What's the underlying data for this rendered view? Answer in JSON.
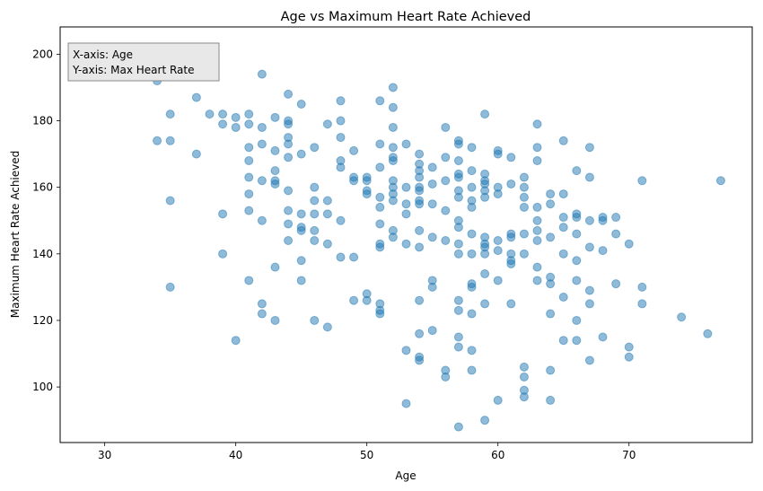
{
  "chart_data": {
    "type": "scatter",
    "title": "Age vs Maximum Heart Rate Achieved",
    "xlabel": "Age",
    "ylabel": "Maximum Heart Rate Achieved",
    "xlim": [
      26.6,
      79.4
    ],
    "ylim": [
      83.3,
      208.2
    ],
    "xticks": [
      30,
      40,
      50,
      60,
      70
    ],
    "yticks": [
      100,
      120,
      140,
      160,
      180,
      200
    ],
    "grid": false,
    "marker_color": "#1f77b4",
    "marker_alpha": 0.5,
    "annotation": {
      "lines": [
        "X-axis: Age",
        "Y-axis: Max Heart Rate"
      ],
      "position": "top-left",
      "facecolor": "#e8e8e8",
      "edgecolor": "#888888"
    },
    "points": [
      [
        29,
        202
      ],
      [
        34,
        192
      ],
      [
        34,
        174
      ],
      [
        35,
        174
      ],
      [
        35,
        182
      ],
      [
        35,
        156
      ],
      [
        35,
        130
      ],
      [
        37,
        187
      ],
      [
        37,
        170
      ],
      [
        38,
        182
      ],
      [
        39,
        182
      ],
      [
        39,
        179
      ],
      [
        39,
        152
      ],
      [
        39,
        140
      ],
      [
        40,
        181
      ],
      [
        40,
        178
      ],
      [
        40,
        114
      ],
      [
        41,
        182
      ],
      [
        41,
        179
      ],
      [
        41,
        172
      ],
      [
        41,
        168
      ],
      [
        41,
        163
      ],
      [
        41,
        158
      ],
      [
        41,
        153
      ],
      [
        41,
        132
      ],
      [
        42,
        194
      ],
      [
        42,
        178
      ],
      [
        42,
        173
      ],
      [
        42,
        162
      ],
      [
        42,
        150
      ],
      [
        42,
        125
      ],
      [
        42,
        122
      ],
      [
        43,
        181
      ],
      [
        43,
        171
      ],
      [
        43,
        165
      ],
      [
        43,
        162
      ],
      [
        43,
        161
      ],
      [
        43,
        136
      ],
      [
        43,
        120
      ],
      [
        44,
        188
      ],
      [
        44,
        180
      ],
      [
        44,
        179
      ],
      [
        44,
        175
      ],
      [
        44,
        173
      ],
      [
        44,
        169
      ],
      [
        44,
        159
      ],
      [
        44,
        153
      ],
      [
        44,
        149
      ],
      [
        44,
        144
      ],
      [
        45,
        185
      ],
      [
        45,
        170
      ],
      [
        45,
        152
      ],
      [
        45,
        148
      ],
      [
        45,
        147
      ],
      [
        45,
        138
      ],
      [
        45,
        132
      ],
      [
        46,
        172
      ],
      [
        46,
        160
      ],
      [
        46,
        156
      ],
      [
        46,
        152
      ],
      [
        46,
        147
      ],
      [
        46,
        144
      ],
      [
        46,
        120
      ],
      [
        47,
        179
      ],
      [
        47,
        156
      ],
      [
        47,
        152
      ],
      [
        47,
        143
      ],
      [
        47,
        118
      ],
      [
        48,
        186
      ],
      [
        48,
        180
      ],
      [
        48,
        175
      ],
      [
        48,
        168
      ],
      [
        48,
        166
      ],
      [
        48,
        150
      ],
      [
        48,
        139
      ],
      [
        49,
        171
      ],
      [
        49,
        163
      ],
      [
        49,
        162
      ],
      [
        49,
        139
      ],
      [
        49,
        126
      ],
      [
        50,
        163
      ],
      [
        50,
        162
      ],
      [
        50,
        159
      ],
      [
        50,
        158
      ],
      [
        50,
        128
      ],
      [
        50,
        126
      ],
      [
        51,
        186
      ],
      [
        51,
        173
      ],
      [
        51,
        166
      ],
      [
        51,
        157
      ],
      [
        51,
        154
      ],
      [
        51,
        149
      ],
      [
        51,
        143
      ],
      [
        51,
        142
      ],
      [
        51,
        125
      ],
      [
        51,
        123
      ],
      [
        51,
        122
      ],
      [
        52,
        190
      ],
      [
        52,
        184
      ],
      [
        52,
        178
      ],
      [
        52,
        172
      ],
      [
        52,
        169
      ],
      [
        52,
        168
      ],
      [
        52,
        162
      ],
      [
        52,
        160
      ],
      [
        52,
        158
      ],
      [
        52,
        156
      ],
      [
        52,
        147
      ],
      [
        52,
        145
      ],
      [
        53,
        173
      ],
      [
        53,
        160
      ],
      [
        53,
        155
      ],
      [
        53,
        152
      ],
      [
        53,
        143
      ],
      [
        53,
        111
      ],
      [
        53,
        95
      ],
      [
        54,
        170
      ],
      [
        54,
        167
      ],
      [
        54,
        165
      ],
      [
        54,
        163
      ],
      [
        54,
        160
      ],
      [
        54,
        159
      ],
      [
        54,
        156
      ],
      [
        54,
        155
      ],
      [
        54,
        147
      ],
      [
        54,
        142
      ],
      [
        54,
        126
      ],
      [
        54,
        116
      ],
      [
        54,
        109
      ],
      [
        54,
        108
      ],
      [
        55,
        166
      ],
      [
        55,
        161
      ],
      [
        55,
        155
      ],
      [
        55,
        145
      ],
      [
        55,
        132
      ],
      [
        55,
        130
      ],
      [
        55,
        117
      ],
      [
        56,
        178
      ],
      [
        56,
        169
      ],
      [
        56,
        162
      ],
      [
        56,
        153
      ],
      [
        56,
        144
      ],
      [
        56,
        105
      ],
      [
        56,
        103
      ],
      [
        57,
        174
      ],
      [
        57,
        173
      ],
      [
        57,
        168
      ],
      [
        57,
        164
      ],
      [
        57,
        163
      ],
      [
        57,
        159
      ],
      [
        57,
        157
      ],
      [
        57,
        150
      ],
      [
        57,
        148
      ],
      [
        57,
        143
      ],
      [
        57,
        140
      ],
      [
        57,
        126
      ],
      [
        57,
        123
      ],
      [
        57,
        115
      ],
      [
        57,
        112
      ],
      [
        57,
        88
      ],
      [
        58,
        172
      ],
      [
        58,
        165
      ],
      [
        58,
        160
      ],
      [
        58,
        156
      ],
      [
        58,
        154
      ],
      [
        58,
        146
      ],
      [
        58,
        140
      ],
      [
        58,
        131
      ],
      [
        58,
        130
      ],
      [
        58,
        122
      ],
      [
        58,
        111
      ],
      [
        58,
        105
      ],
      [
        59,
        182
      ],
      [
        59,
        164
      ],
      [
        59,
        162
      ],
      [
        59,
        161
      ],
      [
        59,
        159
      ],
      [
        59,
        157
      ],
      [
        59,
        145
      ],
      [
        59,
        143
      ],
      [
        59,
        142
      ],
      [
        59,
        140
      ],
      [
        59,
        134
      ],
      [
        59,
        125
      ],
      [
        59,
        90
      ],
      [
        60,
        171
      ],
      [
        60,
        170
      ],
      [
        60,
        160
      ],
      [
        60,
        158
      ],
      [
        60,
        144
      ],
      [
        60,
        141
      ],
      [
        60,
        132
      ],
      [
        60,
        96
      ],
      [
        61,
        169
      ],
      [
        61,
        161
      ],
      [
        61,
        146
      ],
      [
        61,
        145
      ],
      [
        61,
        140
      ],
      [
        61,
        138
      ],
      [
        61,
        137
      ],
      [
        61,
        125
      ],
      [
        62,
        163
      ],
      [
        62,
        160
      ],
      [
        62,
        157
      ],
      [
        62,
        154
      ],
      [
        62,
        146
      ],
      [
        62,
        140
      ],
      [
        62,
        106
      ],
      [
        62,
        103
      ],
      [
        62,
        99
      ],
      [
        62,
        97
      ],
      [
        63,
        179
      ],
      [
        63,
        172
      ],
      [
        63,
        168
      ],
      [
        63,
        154
      ],
      [
        63,
        150
      ],
      [
        63,
        147
      ],
      [
        63,
        144
      ],
      [
        63,
        136
      ],
      [
        63,
        132
      ],
      [
        64,
        158
      ],
      [
        64,
        155
      ],
      [
        64,
        145
      ],
      [
        64,
        133
      ],
      [
        64,
        131
      ],
      [
        64,
        122
      ],
      [
        64,
        105
      ],
      [
        64,
        96
      ],
      [
        65,
        174
      ],
      [
        65,
        158
      ],
      [
        65,
        151
      ],
      [
        65,
        148
      ],
      [
        65,
        140
      ],
      [
        65,
        127
      ],
      [
        65,
        114
      ],
      [
        66,
        165
      ],
      [
        66,
        152
      ],
      [
        66,
        151
      ],
      [
        66,
        146
      ],
      [
        66,
        138
      ],
      [
        66,
        132
      ],
      [
        66,
        120
      ],
      [
        66,
        114
      ],
      [
        67,
        172
      ],
      [
        67,
        163
      ],
      [
        67,
        150
      ],
      [
        67,
        142
      ],
      [
        67,
        129
      ],
      [
        67,
        125
      ],
      [
        67,
        108
      ],
      [
        68,
        151
      ],
      [
        68,
        150
      ],
      [
        68,
        141
      ],
      [
        68,
        115
      ],
      [
        69,
        151
      ],
      [
        69,
        146
      ],
      [
        69,
        131
      ],
      [
        70,
        143
      ],
      [
        70,
        112
      ],
      [
        70,
        109
      ],
      [
        71,
        162
      ],
      [
        71,
        130
      ],
      [
        71,
        125
      ],
      [
        74,
        121
      ],
      [
        76,
        116
      ],
      [
        77,
        162
      ]
    ]
  }
}
